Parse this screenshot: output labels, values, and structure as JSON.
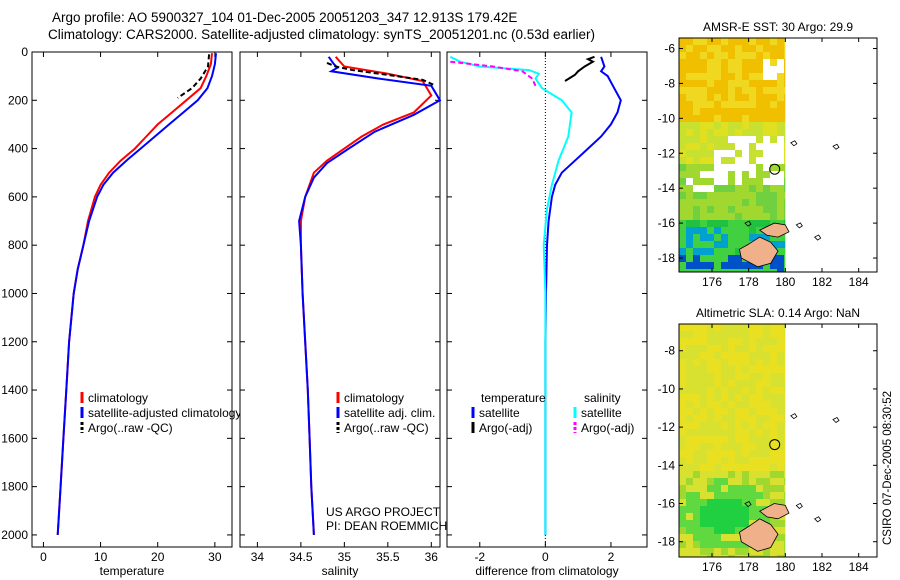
{
  "header": {
    "line1": "Argo profile: AO 5900327_104 01-Dec-2005 20051203_347 12.913S 179.42E",
    "line2": "Climatology: CARS2000. Satellite-adjusted climatology: synTS_20051201.nc (0.53d earlier)"
  },
  "colors": {
    "climatology": "#ff0000",
    "satellite": "#0000ff",
    "argo": "#000000",
    "salinity_satellite": "#00ffff",
    "salinity_argo": "#ff00ff",
    "land": "#f0b08a"
  },
  "chart_data": [
    {
      "id": "temperature",
      "type": "line",
      "xlabel": "temperature",
      "ylabel": "",
      "xlim": [
        -2,
        33
      ],
      "ylim": [
        2050,
        0
      ],
      "x_ticks": [
        0,
        10,
        20,
        30
      ],
      "x_tick_labels": [
        "0",
        "10",
        "20",
        "30"
      ],
      "y_ticks": [
        0,
        200,
        400,
        600,
        800,
        1000,
        1200,
        1400,
        1600,
        1800,
        2000
      ],
      "y_tick_labels": [
        "0",
        "200",
        "400",
        "600",
        "800",
        "1000",
        "1200",
        "1400",
        "1600",
        "1800",
        "2000"
      ],
      "legend": [
        "climatology",
        "satellite-adjusted climatology",
        "Argo(..raw -QC)"
      ],
      "series": [
        {
          "name": "climatology",
          "color": "#ff0000",
          "dash": "",
          "points": [
            [
              29.5,
              5
            ],
            [
              29.3,
              50
            ],
            [
              28.5,
              100
            ],
            [
              27.5,
              150
            ],
            [
              25.0,
              200
            ],
            [
              22.5,
              250
            ],
            [
              20.0,
              300
            ],
            [
              18.0,
              350
            ],
            [
              16.0,
              400
            ],
            [
              13.5,
              450
            ],
            [
              11.5,
              500
            ],
            [
              10.0,
              550
            ],
            [
              9.0,
              600
            ],
            [
              7.8,
              700
            ],
            [
              7.0,
              800
            ],
            [
              6.0,
              900
            ],
            [
              5.3,
              1000
            ],
            [
              4.5,
              1200
            ],
            [
              4.0,
              1400
            ],
            [
              3.5,
              1600
            ],
            [
              3.0,
              1800
            ],
            [
              2.5,
              2000
            ]
          ]
        },
        {
          "name": "satellite-adjusted climatology",
          "color": "#0000ff",
          "dash": "",
          "points": [
            [
              30.2,
              5
            ],
            [
              30.0,
              50
            ],
            [
              29.5,
              100
            ],
            [
              28.7,
              150
            ],
            [
              27.0,
              200
            ],
            [
              24.5,
              250
            ],
            [
              22.0,
              300
            ],
            [
              19.5,
              350
            ],
            [
              17.0,
              400
            ],
            [
              14.5,
              450
            ],
            [
              12.2,
              500
            ],
            [
              10.5,
              550
            ],
            [
              9.4,
              600
            ],
            [
              8.0,
              700
            ],
            [
              7.0,
              800
            ],
            [
              6.0,
              900
            ],
            [
              5.3,
              1000
            ],
            [
              4.5,
              1200
            ],
            [
              4.0,
              1400
            ],
            [
              3.5,
              1600
            ],
            [
              3.0,
              1800
            ],
            [
              2.5,
              2000
            ]
          ]
        },
        {
          "name": "Argo(..raw -QC)",
          "color": "#000000",
          "dash": "5,3",
          "points": [
            [
              29.0,
              10
            ],
            [
              28.8,
              60
            ],
            [
              27.5,
              110
            ],
            [
              26.0,
              150
            ],
            [
              23.5,
              190
            ]
          ]
        }
      ]
    },
    {
      "id": "salinity",
      "type": "line",
      "xlabel": "salinity",
      "ylabel": "",
      "xlim": [
        33.8,
        36.1
      ],
      "ylim": [
        2050,
        0
      ],
      "x_ticks": [
        34,
        34.5,
        35,
        35.5,
        36
      ],
      "x_tick_labels": [
        "34",
        "34.5",
        "35",
        "35.5",
        "36"
      ],
      "legend": [
        "climatology",
        "satellite adj. clim.",
        "Argo(..raw -QC)"
      ],
      "annotation": [
        "US ARGO PROJECT",
        "PI: DEAN ROEMMICH"
      ],
      "series": [
        {
          "name": "climatology",
          "color": "#ff0000",
          "dash": "",
          "points": [
            [
              34.9,
              20
            ],
            [
              35.0,
              60
            ],
            [
              35.5,
              90
            ],
            [
              35.9,
              120
            ],
            [
              36.0,
              180
            ],
            [
              35.8,
              250
            ],
            [
              35.45,
              300
            ],
            [
              35.2,
              350
            ],
            [
              35.0,
              400
            ],
            [
              34.8,
              450
            ],
            [
              34.65,
              500
            ],
            [
              34.55,
              600
            ],
            [
              34.5,
              700
            ],
            [
              34.5,
              800
            ],
            [
              34.52,
              1000
            ],
            [
              34.55,
              1200
            ],
            [
              34.58,
              1400
            ],
            [
              34.6,
              1600
            ],
            [
              34.62,
              1800
            ],
            [
              34.65,
              2000
            ]
          ]
        },
        {
          "name": "satellite adj. clim.",
          "color": "#0000ff",
          "dash": "",
          "points": [
            [
              34.82,
              20
            ],
            [
              34.88,
              50
            ],
            [
              34.92,
              65
            ],
            [
              34.85,
              80
            ],
            [
              35.4,
              110
            ],
            [
              36.0,
              140
            ],
            [
              36.1,
              200
            ],
            [
              35.8,
              260
            ],
            [
              35.35,
              330
            ],
            [
              35.05,
              400
            ],
            [
              34.8,
              460
            ],
            [
              34.65,
              520
            ],
            [
              34.55,
              600
            ],
            [
              34.48,
              700
            ],
            [
              34.5,
              800
            ],
            [
              34.52,
              1000
            ],
            [
              34.55,
              1200
            ],
            [
              34.58,
              1400
            ],
            [
              34.6,
              1600
            ],
            [
              34.62,
              1800
            ],
            [
              34.65,
              2000
            ]
          ]
        },
        {
          "name": "Argo(..raw -QC)",
          "color": "#000000",
          "dash": "5,3",
          "points": [
            [
              34.8,
              45
            ],
            [
              34.9,
              60
            ],
            [
              35.1,
              75
            ],
            [
              35.5,
              95
            ],
            [
              35.9,
              115
            ],
            [
              36.05,
              140
            ]
          ]
        }
      ]
    },
    {
      "id": "difference",
      "type": "line",
      "xlabel": "difference from climatology",
      "ylabel": "",
      "xlim": [
        -3,
        3.1
      ],
      "ylim": [
        2050,
        0
      ],
      "x_ticks": [
        -2,
        0,
        2
      ],
      "x_tick_labels": [
        "-2",
        "0",
        "2"
      ],
      "legend_groups": [
        {
          "title": "temperature",
          "items": [
            "satellite",
            "Argo(-adj)"
          ]
        },
        {
          "title": "salinity",
          "items": [
            "satellite",
            "Argo(-adj)"
          ]
        }
      ],
      "series": [
        {
          "name": "temperature satellite",
          "color": "#0000ff",
          "dash": "",
          "points": [
            [
              1.7,
              20
            ],
            [
              1.8,
              60
            ],
            [
              1.7,
              80
            ],
            [
              1.9,
              100
            ],
            [
              2.1,
              150
            ],
            [
              2.3,
              200
            ],
            [
              2.2,
              250
            ],
            [
              2.0,
              300
            ],
            [
              1.7,
              350
            ],
            [
              1.3,
              400
            ],
            [
              0.9,
              450
            ],
            [
              0.5,
              500
            ],
            [
              0.3,
              550
            ],
            [
              0.2,
              600
            ],
            [
              0.1,
              700
            ],
            [
              0.05,
              800
            ],
            [
              0.02,
              1000
            ],
            [
              0.0,
              1200
            ],
            [
              0.0,
              1600
            ],
            [
              0.0,
              2000
            ]
          ]
        },
        {
          "name": "temperature Argo(-adj)",
          "color": "#000000",
          "dash": "",
          "points": [
            [
              0.6,
              120
            ],
            [
              0.9,
              95
            ],
            [
              1.0,
              80
            ],
            [
              1.2,
              60
            ],
            [
              1.45,
              40
            ],
            [
              1.3,
              30
            ],
            [
              1.5,
              20
            ]
          ]
        },
        {
          "name": "salinity satellite",
          "color": "#00ffff",
          "dash": "",
          "points": [
            [
              -2.9,
              20
            ],
            [
              -2.6,
              40
            ],
            [
              -2.0,
              60
            ],
            [
              -0.5,
              75
            ],
            [
              -0.2,
              90
            ],
            [
              -0.3,
              110
            ],
            [
              -0.1,
              150
            ],
            [
              0.5,
              200
            ],
            [
              0.8,
              250
            ],
            [
              0.7,
              350
            ],
            [
              0.4,
              450
            ],
            [
              0.2,
              550
            ],
            [
              0.05,
              650
            ],
            [
              -0.05,
              800
            ],
            [
              0.0,
              1000
            ],
            [
              0.0,
              1200
            ],
            [
              0.0,
              1600
            ],
            [
              0.0,
              2000
            ]
          ]
        },
        {
          "name": "salinity Argo(-adj)",
          "color": "#ff00ff",
          "dash": "5,3",
          "points": [
            [
              -2.9,
              40
            ],
            [
              -1.6,
              60
            ],
            [
              -0.7,
              80
            ],
            [
              -0.4,
              110
            ],
            [
              -0.3,
              140
            ]
          ]
        }
      ]
    },
    {
      "id": "sst_map",
      "type": "heatmap",
      "title": "AMSR-E SST: 30 Argo: 29.9",
      "xlim": [
        174.2,
        185
      ],
      "ylim": [
        -18.8,
        -5.4
      ],
      "x_ticks": [
        176,
        178,
        180,
        182,
        184
      ],
      "x_tick_labels": [
        "176",
        "178",
        "180",
        "182",
        "184"
      ],
      "y_ticks": [
        -6,
        -8,
        -10,
        -12,
        -14,
        -16,
        -18
      ],
      "y_tick_labels": [
        "-6",
        "-8",
        "-10",
        "-12",
        "-14",
        "-16",
        "-18"
      ],
      "float_position": [
        179.42,
        -12.913
      ]
    },
    {
      "id": "sla_map",
      "type": "heatmap",
      "title": "Altimetric SLA: 0.14 Argo: NaN",
      "xlim": [
        174.2,
        185
      ],
      "ylim": [
        -18.8,
        -6.6
      ],
      "x_ticks": [
        176,
        178,
        180,
        182,
        184
      ],
      "x_tick_labels": [
        "176",
        "178",
        "180",
        "182",
        "184"
      ],
      "y_ticks": [
        -8,
        -10,
        -12,
        -14,
        -16,
        -18
      ],
      "y_tick_labels": [
        "-8",
        "-10",
        "-12",
        "-14",
        "-16",
        "-18"
      ],
      "float_position": [
        179.42,
        -12.913
      ]
    }
  ],
  "side_label": "CSIRO 07-Dec-2005 08:30:52"
}
